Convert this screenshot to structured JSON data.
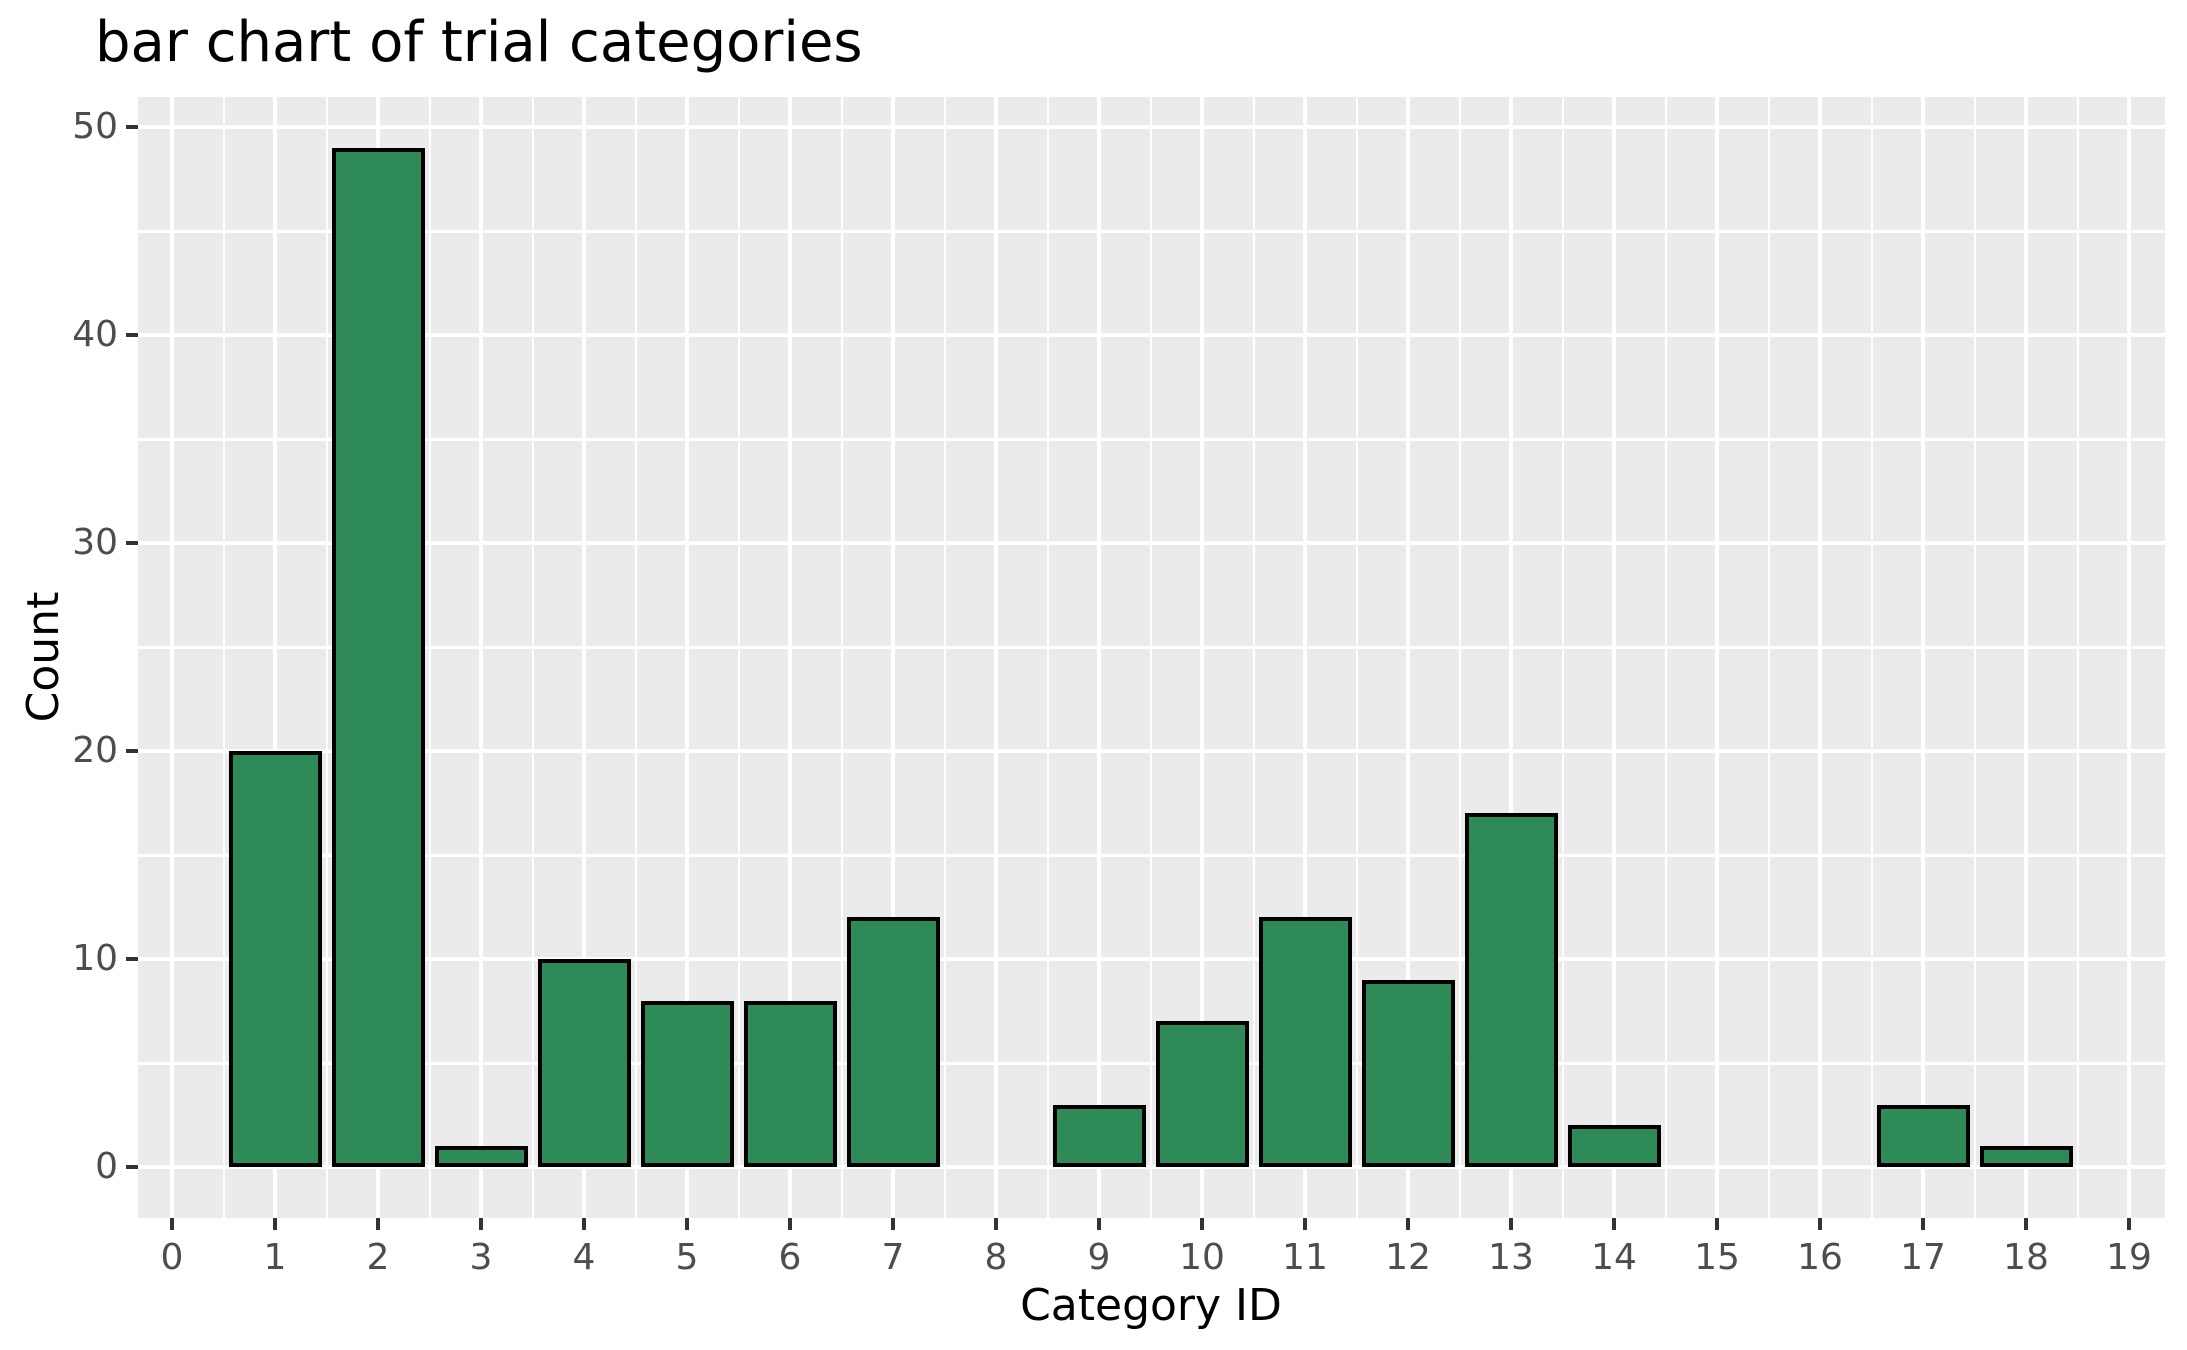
{
  "chart_data": {
    "type": "bar",
    "title": "bar chart of trial categories",
    "xlabel": "Category ID",
    "ylabel": "Count",
    "categories": [
      0,
      1,
      2,
      3,
      4,
      5,
      6,
      7,
      8,
      9,
      10,
      11,
      12,
      13,
      14,
      15,
      16,
      17,
      18,
      19
    ],
    "values": [
      0,
      20,
      49,
      1,
      10,
      8,
      8,
      12,
      0,
      3,
      7,
      12,
      9,
      17,
      2,
      0,
      0,
      3,
      1,
      0
    ],
    "xlim": [
      -0.34,
      19.34
    ],
    "ylim": [
      0,
      51.45
    ],
    "y_major_ticks": [
      0,
      10,
      20,
      30,
      40,
      50
    ],
    "y_minor_gridlines": [
      5,
      15,
      25,
      35,
      45
    ],
    "x_major_ticks": [
      0,
      1,
      2,
      3,
      4,
      5,
      6,
      7,
      8,
      9,
      10,
      11,
      12,
      13,
      14,
      15,
      16,
      17,
      18,
      19
    ],
    "grid": "on",
    "legend": "none",
    "bar_width_fraction": 0.9,
    "colors": {
      "bar_fill": "#2E8B57",
      "bar_stroke": "#000000",
      "panel_background": "#EBEBEB",
      "gridline": "#FFFFFF",
      "tick_label": "#4D4D4D",
      "tick_mark": "#333333",
      "axis_title": "#000000",
      "title": "#000000"
    }
  }
}
